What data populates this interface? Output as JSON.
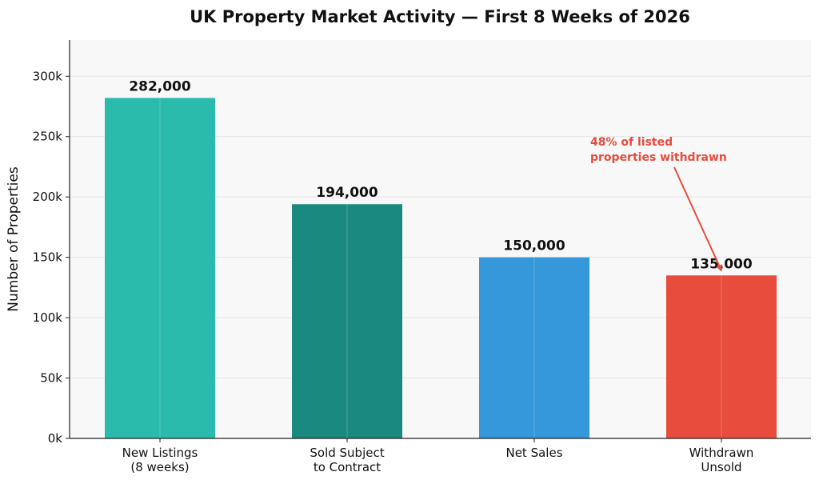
{
  "chart_data": {
    "type": "bar",
    "title": "UK Property Market Activity — First 8 Weeks of 2026",
    "xlabel": "",
    "ylabel": "Number of Properties",
    "categories": [
      [
        "New Listings",
        "(8 weeks)"
      ],
      [
        "Sold Subject",
        "to Contract"
      ],
      [
        "Net Sales"
      ],
      [
        "Withdrawn",
        "Unsold"
      ]
    ],
    "values": [
      282000,
      194000,
      150000,
      135000
    ],
    "value_labels": [
      "282,000",
      "194,000",
      "150,000",
      "135,000"
    ],
    "colors": [
      "#2bbbad",
      "#1b8a7e",
      "#3498db",
      "#e74c3c"
    ],
    "ylim": [
      0,
      330000
    ],
    "yticks": [
      0,
      50000,
      100000,
      150000,
      200000,
      250000,
      300000
    ],
    "ytick_labels": [
      "0k",
      "50k",
      "100k",
      "150k",
      "200k",
      "250k",
      "300k"
    ],
    "grid": true,
    "annotation": {
      "lines": [
        "48% of listed",
        "properties withdrawn"
      ],
      "target_category_index": 3,
      "color": "#e74c3c"
    }
  }
}
